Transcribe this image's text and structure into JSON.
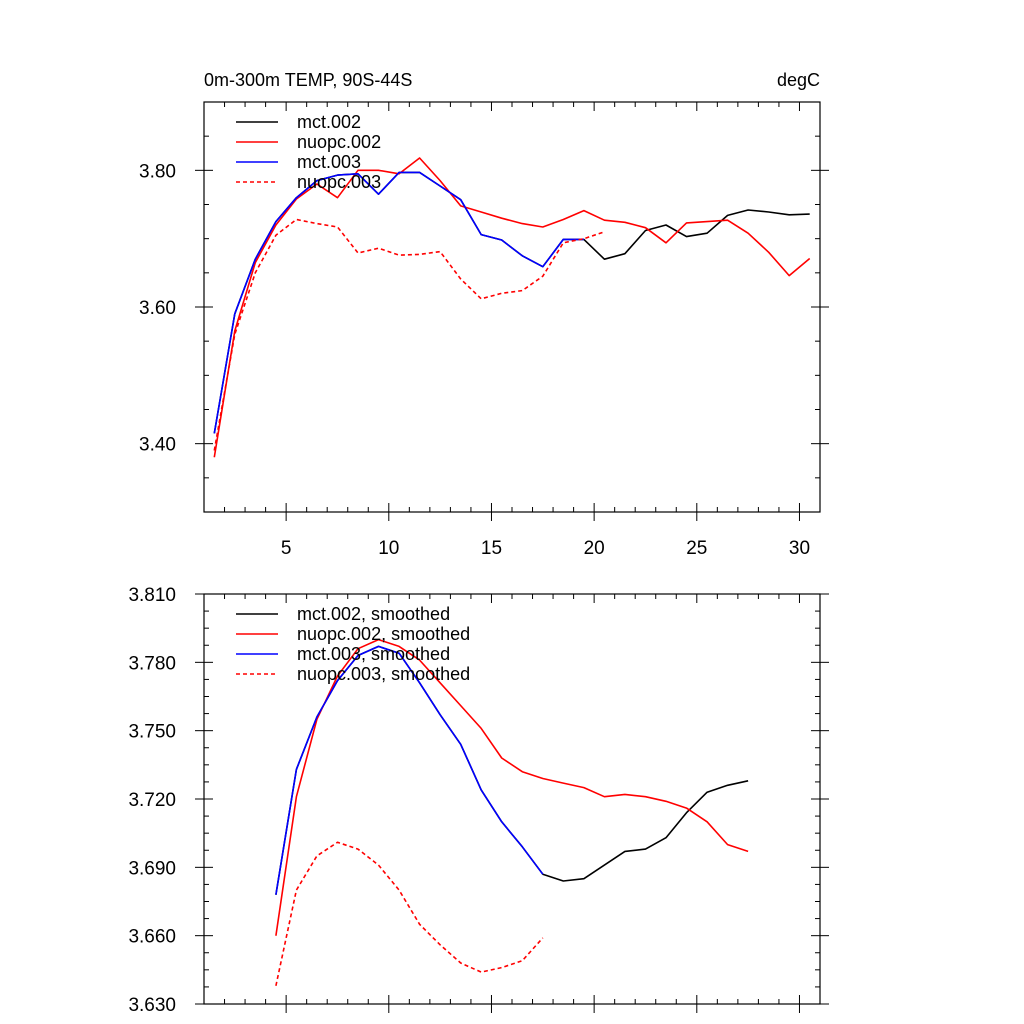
{
  "chart_data": [
    {
      "type": "line",
      "title_left": "0m-300m TEMP, 90S-44S",
      "title_right": "degC",
      "xlabel": "",
      "ylabel": "",
      "xlim": [
        1,
        31
      ],
      "ylim": [
        3.3,
        3.9
      ],
      "xticks": [
        5,
        10,
        15,
        20,
        25,
        30
      ],
      "xtick_labels": [
        "5",
        "10",
        "15",
        "20",
        "25",
        "30"
      ],
      "yticks": [
        3.4,
        3.6,
        3.8
      ],
      "ytick_labels": [
        "3.40",
        "3.60",
        "3.80"
      ],
      "legend_position": "top-left",
      "series": [
        {
          "name": "mct.002",
          "color": "#000000",
          "dash": "solid",
          "x": [
            1.5,
            2.5,
            3.5,
            4.5,
            5.5,
            6.5,
            7.5,
            8.5,
            9.5,
            10.5,
            11.5,
            12.5,
            13.5,
            14.5,
            15.5,
            16.5,
            17.5,
            18.5,
            19.5,
            20.5,
            21.5,
            22.5,
            23.5,
            24.5,
            25.5,
            26.5,
            27.5,
            28.5,
            29.5,
            30.5
          ],
          "y": [
            3.415,
            3.59,
            3.67,
            3.725,
            3.76,
            3.785,
            3.793,
            3.795,
            3.765,
            3.797,
            3.797,
            3.777,
            3.757,
            3.706,
            3.698,
            3.675,
            3.659,
            3.699,
            3.699,
            3.67,
            3.678,
            3.712,
            3.72,
            3.703,
            3.708,
            3.734,
            3.742,
            3.739,
            3.735,
            3.736
          ]
        },
        {
          "name": "nuopc.002",
          "color": "#ff0000",
          "dash": "solid",
          "x": [
            1.5,
            2.5,
            3.5,
            4.5,
            5.5,
            6.5,
            7.5,
            8.5,
            9.5,
            10.5,
            11.5,
            12.5,
            13.5,
            14.5,
            15.5,
            16.5,
            17.5,
            18.5,
            19.5,
            20.5,
            21.5,
            22.5,
            23.5,
            24.5,
            25.5,
            26.5,
            27.5,
            28.5,
            29.5,
            30.5
          ],
          "y": [
            3.38,
            3.565,
            3.665,
            3.72,
            3.758,
            3.78,
            3.76,
            3.8,
            3.8,
            3.795,
            3.818,
            3.785,
            3.748,
            3.739,
            3.73,
            3.722,
            3.717,
            3.728,
            3.741,
            3.727,
            3.724,
            3.716,
            3.694,
            3.723,
            3.725,
            3.727,
            3.708,
            3.68,
            3.646,
            3.671
          ]
        },
        {
          "name": "mct.003",
          "color": "#0000ff",
          "dash": "solid",
          "x": [
            1.5,
            2.5,
            3.5,
            4.5,
            5.5,
            6.5,
            7.5,
            8.5,
            9.5,
            10.5,
            11.5,
            12.5,
            13.5,
            14.5,
            15.5,
            16.5,
            17.5,
            18.5,
            19.5
          ],
          "y": [
            3.415,
            3.59,
            3.67,
            3.725,
            3.76,
            3.785,
            3.793,
            3.795,
            3.765,
            3.797,
            3.797,
            3.777,
            3.757,
            3.706,
            3.698,
            3.675,
            3.659,
            3.699,
            3.699
          ]
        },
        {
          "name": "nuopc.003",
          "color": "#ff0000",
          "dash": "dashed",
          "x": [
            1.5,
            2.5,
            3.5,
            4.5,
            5.5,
            6.5,
            7.5,
            8.5,
            9.5,
            10.5,
            11.5,
            12.5,
            13.5,
            14.5,
            15.5,
            16.5,
            17.5,
            18.5,
            19.5,
            20.5
          ],
          "y": [
            3.39,
            3.56,
            3.65,
            3.705,
            3.728,
            3.722,
            3.717,
            3.679,
            3.686,
            3.676,
            3.677,
            3.681,
            3.641,
            3.612,
            3.62,
            3.624,
            3.645,
            3.694,
            3.7,
            3.71
          ]
        }
      ]
    },
    {
      "type": "line",
      "title_left": "",
      "title_right": "",
      "xlabel": "",
      "ylabel": "",
      "xlim": [
        1,
        31
      ],
      "ylim": [
        3.63,
        3.81
      ],
      "xticks": [
        5,
        10,
        15,
        20,
        25,
        30
      ],
      "xtick_labels": [],
      "yticks": [
        3.63,
        3.66,
        3.69,
        3.72,
        3.75,
        3.78,
        3.81
      ],
      "ytick_labels": [
        "3.630",
        "3.660",
        "3.690",
        "3.720",
        "3.750",
        "3.780",
        "3.810"
      ],
      "legend_position": "top-left",
      "series": [
        {
          "name": "mct.002, smoothed",
          "color": "#000000",
          "dash": "solid",
          "x": [
            4.5,
            5.5,
            6.5,
            7.5,
            8.5,
            9.5,
            10.5,
            11.5,
            12.5,
            13.5,
            14.5,
            15.5,
            16.5,
            17.5,
            18.5,
            19.5,
            20.5,
            21.5,
            22.5,
            23.5,
            24.5,
            25.5,
            26.5,
            27.5
          ],
          "y": [
            3.678,
            3.733,
            3.756,
            3.772,
            3.783,
            3.787,
            3.784,
            3.771,
            3.757,
            3.744,
            3.724,
            3.71,
            3.699,
            3.687,
            3.684,
            3.685,
            3.691,
            3.697,
            3.698,
            3.703,
            3.714,
            3.723,
            3.726,
            3.728
          ]
        },
        {
          "name": "nuopc.002, smoothed",
          "color": "#ff0000",
          "dash": "solid",
          "x": [
            4.5,
            5.5,
            6.5,
            7.5,
            8.5,
            9.5,
            10.5,
            11.5,
            12.5,
            13.5,
            14.5,
            15.5,
            16.5,
            17.5,
            18.5,
            19.5,
            20.5,
            21.5,
            22.5,
            23.5,
            24.5,
            25.5,
            26.5,
            27.5
          ],
          "y": [
            3.66,
            3.721,
            3.755,
            3.774,
            3.786,
            3.79,
            3.787,
            3.781,
            3.771,
            3.761,
            3.751,
            3.738,
            3.732,
            3.729,
            3.727,
            3.725,
            3.721,
            3.722,
            3.721,
            3.719,
            3.716,
            3.71,
            3.7,
            3.697
          ]
        },
        {
          "name": "mct.003, smoothed",
          "color": "#0000ff",
          "dash": "solid",
          "x": [
            4.5,
            5.5,
            6.5,
            7.5,
            8.5,
            9.5,
            10.5,
            11.5,
            12.5,
            13.5,
            14.5,
            15.5,
            16.5,
            17.5
          ],
          "y": [
            3.678,
            3.733,
            3.756,
            3.772,
            3.783,
            3.787,
            3.784,
            3.771,
            3.757,
            3.744,
            3.724,
            3.71,
            3.699,
            3.687
          ]
        },
        {
          "name": "nuopc.003, smoothed",
          "color": "#ff0000",
          "dash": "dashed",
          "x": [
            4.5,
            5.5,
            6.5,
            7.5,
            8.5,
            9.5,
            10.5,
            11.5,
            12.5,
            13.5,
            14.5,
            15.5,
            16.5,
            17.5
          ],
          "y": [
            3.638,
            3.68,
            3.695,
            3.701,
            3.698,
            3.691,
            3.68,
            3.665,
            3.656,
            3.648,
            3.644,
            3.646,
            3.649,
            3.659
          ]
        }
      ]
    }
  ]
}
